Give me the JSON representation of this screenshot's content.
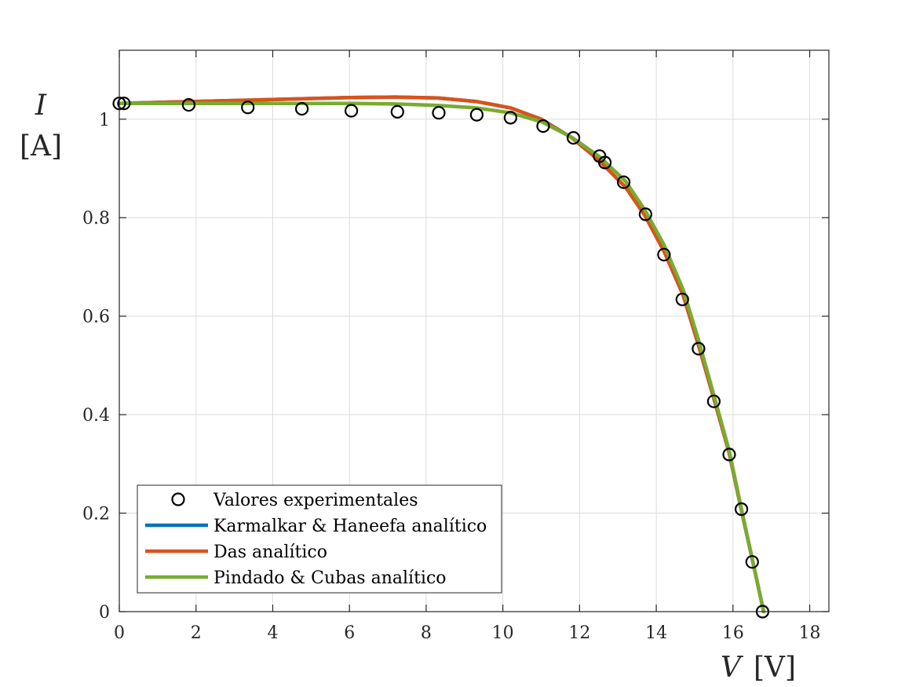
{
  "chart_data": {
    "type": "line",
    "title": "",
    "xlabel_symbol": "V",
    "xlabel_unit": "[V]",
    "ylabel_symbol": "I",
    "ylabel_unit": "[A]",
    "xlim": [
      0,
      18.5
    ],
    "ylim": [
      0,
      1.14
    ],
    "xticks": [
      "0",
      "2",
      "4",
      "6",
      "8",
      "10",
      "12",
      "14",
      "16",
      "18"
    ],
    "yticks": [
      "0",
      "0.2",
      "0.4",
      "0.6",
      "0.8",
      "1"
    ],
    "grid": true,
    "legend_position": "bottom-left",
    "series": [
      {
        "name": "Valores experimentales",
        "kind": "scatter",
        "color": "#000000",
        "x": [
          0.0,
          0.12,
          1.81,
          3.35,
          4.76,
          6.05,
          7.25,
          8.33,
          9.32,
          10.2,
          11.05,
          11.84,
          12.52,
          12.66,
          13.15,
          13.72,
          14.2,
          14.68,
          15.1,
          15.5,
          15.9,
          16.22,
          16.5,
          16.77
        ],
        "y": [
          1.032,
          1.032,
          1.029,
          1.024,
          1.021,
          1.017,
          1.015,
          1.013,
          1.009,
          1.003,
          0.986,
          0.962,
          0.925,
          0.912,
          0.872,
          0.807,
          0.725,
          0.634,
          0.534,
          0.427,
          0.319,
          0.208,
          0.101,
          0.0
        ]
      },
      {
        "name": "Karmalkar & Haneefa analítico",
        "kind": "line",
        "color": "#0072bd",
        "x": [
          0,
          2,
          4,
          6,
          7.2,
          8.3,
          9.3,
          10.2,
          11,
          11.8,
          12.5,
          13.2,
          13.7,
          14.2,
          14.7,
          15.1,
          15.5,
          15.9,
          16.2,
          16.5,
          16.8
        ],
        "y": [
          1.032,
          1.036,
          1.04,
          1.044,
          1.045,
          1.043,
          1.036,
          1.023,
          1.0,
          0.962,
          0.917,
          0.862,
          0.805,
          0.732,
          0.643,
          0.541,
          0.433,
          0.322,
          0.213,
          0.107,
          0.0
        ]
      },
      {
        "name": "Das analítico",
        "kind": "line",
        "color": "#d95319",
        "x": [
          0,
          2,
          4,
          6,
          7.2,
          8.3,
          9.3,
          10.2,
          11,
          11.8,
          12.5,
          13.2,
          13.7,
          14.2,
          14.7,
          15.1,
          15.5,
          15.9,
          16.2,
          16.5,
          16.8
        ],
        "y": [
          1.032,
          1.036,
          1.04,
          1.044,
          1.045,
          1.043,
          1.036,
          1.023,
          1.0,
          0.962,
          0.917,
          0.862,
          0.805,
          0.732,
          0.643,
          0.541,
          0.433,
          0.322,
          0.213,
          0.107,
          0.0
        ]
      },
      {
        "name": "Pindado & Cubas analítico",
        "kind": "line",
        "color": "#77ac30",
        "x": [
          0,
          2,
          4,
          6,
          7.2,
          8.3,
          9.3,
          10.2,
          11,
          11.8,
          12.5,
          13.2,
          13.7,
          14.2,
          14.7,
          15.1,
          15.5,
          15.9,
          16.2,
          16.5,
          16.8
        ],
        "y": [
          1.032,
          1.032,
          1.032,
          1.032,
          1.031,
          1.028,
          1.023,
          1.013,
          0.995,
          0.963,
          0.925,
          0.874,
          0.816,
          0.745,
          0.654,
          0.552,
          0.44,
          0.327,
          0.216,
          0.108,
          0.0
        ]
      }
    ]
  }
}
